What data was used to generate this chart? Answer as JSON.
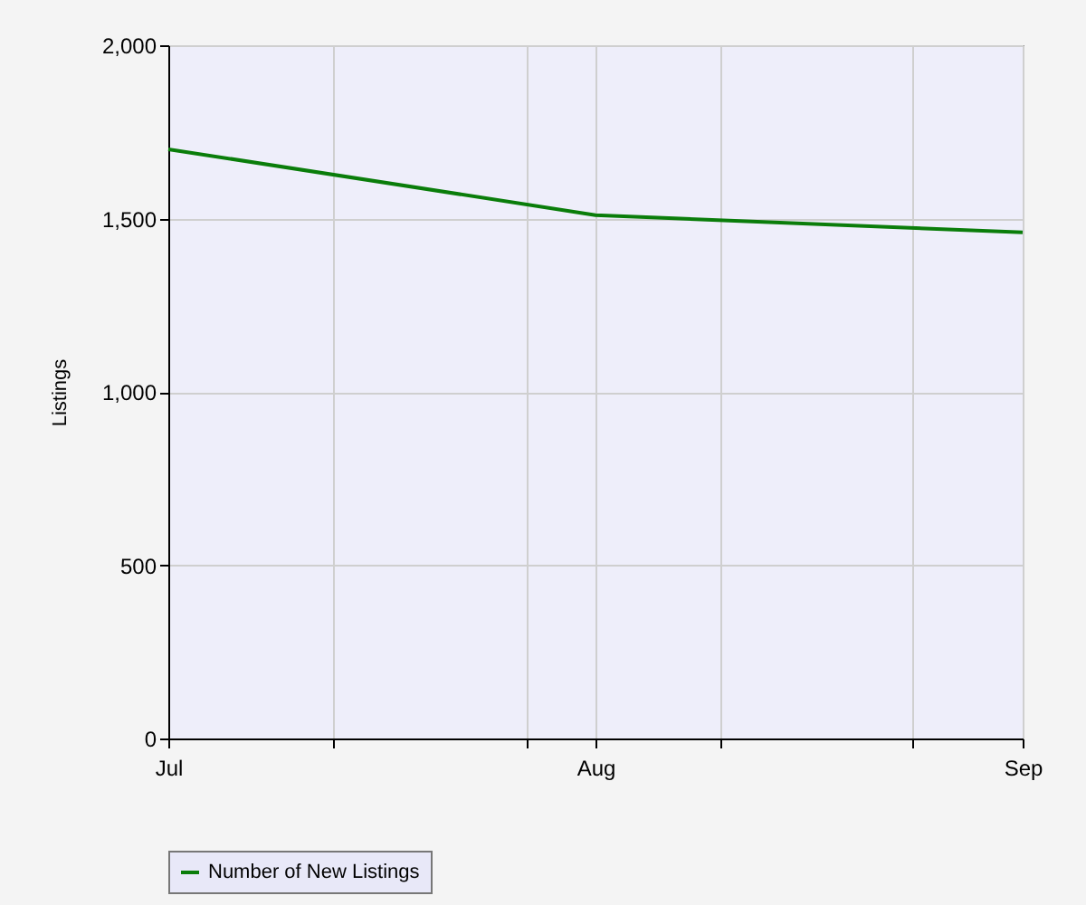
{
  "chart_data": {
    "type": "line",
    "ylabel": "Listings",
    "x": [
      "--07-01",
      "--08-01",
      "--09-01"
    ],
    "series": [
      {
        "name": "Number of New Listings",
        "color": "#0a7d0a",
        "values": [
          1700,
          1510,
          1460
        ]
      }
    ],
    "xlim": [
      "--07-01",
      "--09-01"
    ],
    "xticks": [
      {
        "value": "--07-01",
        "label": "Jul"
      },
      {
        "value": "--07-13",
        "label": null
      },
      {
        "value": "--07-27",
        "label": null
      },
      {
        "value": "--08-01",
        "label": "Aug"
      },
      {
        "value": "--08-10",
        "label": null
      },
      {
        "value": "--08-24",
        "label": null
      },
      {
        "value": "--09-01",
        "label": "Sep"
      }
    ],
    "ylim": [
      0,
      2000
    ],
    "yticks": [
      0,
      500,
      {
        "value": 1000,
        "label": "1,000"
      },
      {
        "value": 1500,
        "label": "1,500"
      },
      {
        "value": 2000,
        "label": "2,000"
      }
    ],
    "grid": true,
    "legend": "bottom",
    "marker": "none",
    "line_style": "solid"
  }
}
